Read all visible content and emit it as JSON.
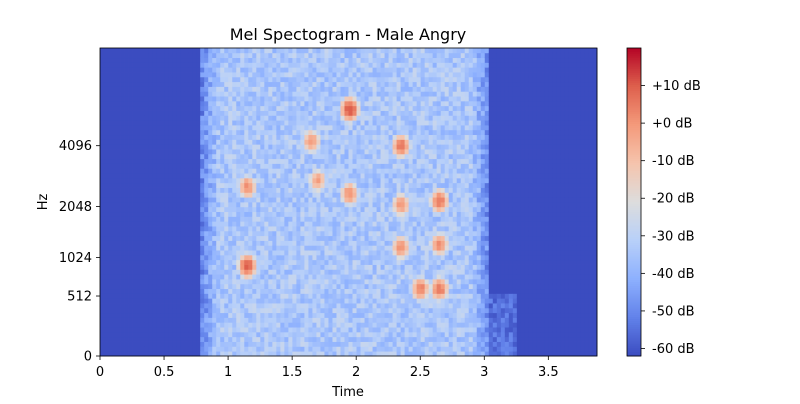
{
  "chart_data": {
    "type": "heatmap",
    "title": "Mel Spectogram - Male Angry",
    "xlabel": "Time",
    "ylabel": "Hz",
    "xlim": [
      0,
      3.88
    ],
    "x_ticks": [
      0,
      0.5,
      1,
      1.5,
      2,
      2.5,
      3,
      3.5
    ],
    "x_tick_labels": [
      "0",
      "0.5",
      "1",
      "1.5",
      "2",
      "2.5",
      "3",
      "3.5"
    ],
    "y_scale": "mel",
    "y_tick_labels": [
      "0",
      "512",
      "1024",
      "2048",
      "4096"
    ],
    "colormap": "coolwarm",
    "colorbar": {
      "range_db": [
        -62,
        20
      ],
      "ticks_db": [
        10,
        0,
        -10,
        -20,
        -30,
        -40,
        -50,
        -60
      ],
      "tick_labels": [
        "+10 dB",
        "+0 dB",
        "-10 dB",
        "-20 dB",
        "-30 dB",
        "-40 dB",
        "-50 dB",
        "-60 dB"
      ]
    },
    "active_region_s": [
      0.78,
      3.05
    ],
    "peak_regions": [
      {
        "time_s": 1.15,
        "hz": 2600,
        "db": 2
      },
      {
        "time_s": 1.15,
        "hz": 900,
        "db": 10
      },
      {
        "time_s": 1.65,
        "hz": 4300,
        "db": 0
      },
      {
        "time_s": 1.7,
        "hz": 2800,
        "db": -2
      },
      {
        "time_s": 1.95,
        "hz": 6000,
        "db": 12
      },
      {
        "time_s": 1.95,
        "hz": 2400,
        "db": 2
      },
      {
        "time_s": 2.35,
        "hz": 4096,
        "db": 6
      },
      {
        "time_s": 2.35,
        "hz": 2100,
        "db": 0
      },
      {
        "time_s": 2.35,
        "hz": 1200,
        "db": 2
      },
      {
        "time_s": 2.5,
        "hz": 600,
        "db": 4
      },
      {
        "time_s": 2.65,
        "hz": 2200,
        "db": 6
      },
      {
        "time_s": 2.65,
        "hz": 1250,
        "db": 2
      },
      {
        "time_s": 2.65,
        "hz": 600,
        "db": 6
      }
    ]
  }
}
